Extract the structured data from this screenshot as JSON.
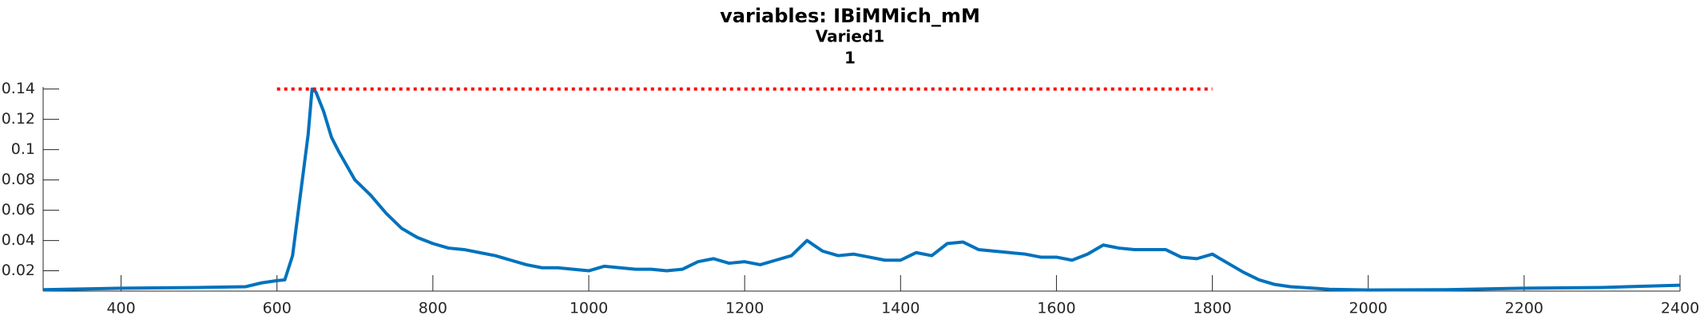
{
  "chart_data": {
    "type": "line",
    "title": "variables: IBiMMich_mM",
    "subtitle": [
      "Varied1",
      "1"
    ],
    "series": [
      {
        "color": "#0072bd",
        "line_style": "solid",
        "x": [
          300,
          400,
          500,
          560,
          580,
          600,
          610,
          620,
          630,
          640,
          645,
          650,
          660,
          670,
          680,
          700,
          720,
          740,
          760,
          780,
          800,
          820,
          840,
          860,
          880,
          900,
          920,
          940,
          960,
          980,
          1000,
          1020,
          1040,
          1060,
          1080,
          1100,
          1120,
          1140,
          1160,
          1180,
          1200,
          1220,
          1240,
          1260,
          1280,
          1300,
          1320,
          1340,
          1360,
          1380,
          1400,
          1420,
          1440,
          1460,
          1480,
          1500,
          1520,
          1540,
          1560,
          1580,
          1600,
          1620,
          1640,
          1660,
          1680,
          1700,
          1720,
          1740,
          1760,
          1780,
          1800,
          1820,
          1840,
          1860,
          1880,
          1900,
          1950,
          2000,
          2100,
          2200,
          2300,
          2400
        ],
        "values": [
          0.0075,
          0.0085,
          0.009,
          0.0095,
          0.012,
          0.0135,
          0.014,
          0.03,
          0.07,
          0.11,
          0.14,
          0.138,
          0.125,
          0.108,
          0.098,
          0.08,
          0.07,
          0.058,
          0.048,
          0.042,
          0.038,
          0.035,
          0.034,
          0.032,
          0.03,
          0.027,
          0.024,
          0.022,
          0.022,
          0.021,
          0.02,
          0.023,
          0.022,
          0.021,
          0.021,
          0.02,
          0.021,
          0.026,
          0.028,
          0.025,
          0.026,
          0.024,
          0.027,
          0.03,
          0.04,
          0.033,
          0.03,
          0.031,
          0.029,
          0.027,
          0.027,
          0.032,
          0.03,
          0.038,
          0.039,
          0.034,
          0.033,
          0.032,
          0.031,
          0.029,
          0.029,
          0.027,
          0.031,
          0.037,
          0.035,
          0.034,
          0.034,
          0.034,
          0.029,
          0.028,
          0.031,
          0.025,
          0.019,
          0.014,
          0.011,
          0.0095,
          0.0078,
          0.0073,
          0.0075,
          0.0085,
          0.009,
          0.0105
        ]
      },
      {
        "color": "#ff0000",
        "line_style": "dotted",
        "x": [
          600,
          1800
        ],
        "values": [
          0.14,
          0.14
        ]
      }
    ],
    "xlim": [
      300,
      2400
    ],
    "xticks": [
      400,
      600,
      800,
      1000,
      1200,
      1400,
      1600,
      1800,
      2000,
      2200,
      2400
    ],
    "ylim": [
      0.0066,
      0.1414
    ],
    "yticks": [
      0.02,
      0.04,
      0.06,
      0.08,
      0.1,
      0.12,
      0.14
    ]
  }
}
